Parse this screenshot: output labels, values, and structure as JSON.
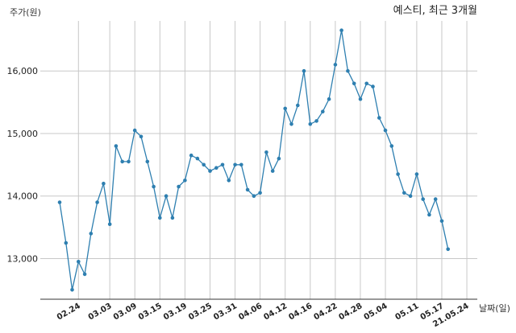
{
  "chart_data": {
    "type": "line",
    "title": "예스티, 최근 3개월",
    "ylabel": "주가(원)",
    "xlabel": "날짜(일)",
    "ylim": [
      12350,
      16800
    ],
    "yticks": [
      13000,
      14000,
      15000,
      16000
    ],
    "ytick_labels": [
      "13,000",
      "14,000",
      "15,000",
      "16,000"
    ],
    "xtick_labels": [
      "02.24",
      "03.03",
      "03.09",
      "03.15",
      "03.19",
      "03.25",
      "03.31",
      "04.06",
      "04.12",
      "04.16",
      "04.22",
      "04.28",
      "05.04",
      "05.11",
      "05.17",
      "21.05.24"
    ],
    "xtick_index": [
      3,
      8,
      12,
      16,
      20,
      24,
      28,
      32,
      36,
      40,
      44,
      48,
      52,
      57,
      61,
      65
    ],
    "grid": "vertical-at-ticks-and-horizontal",
    "color": "#2e7fb0",
    "values": [
      13900,
      13250,
      12500,
      12950,
      12750,
      13400,
      13900,
      14200,
      13550,
      14800,
      14550,
      14550,
      15050,
      14950,
      14550,
      14150,
      13650,
      14000,
      13650,
      14150,
      14250,
      14650,
      14600,
      14500,
      14400,
      14450,
      14500,
      14250,
      14500,
      14500,
      14100,
      14000,
      14050,
      14700,
      14400,
      14600,
      15400,
      15150,
      15450,
      16000,
      15150,
      15200,
      15350,
      15550,
      16100,
      16650,
      16000,
      15800,
      15550,
      15800,
      15750,
      15250,
      15050,
      14800,
      14350,
      14050,
      14000,
      14350,
      13950,
      13700,
      13950,
      13600,
      13150
    ]
  }
}
